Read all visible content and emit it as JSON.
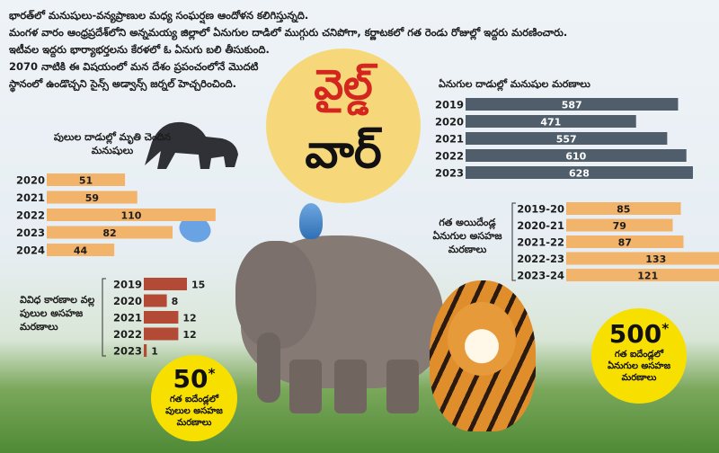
{
  "intro": {
    "line1": "భారత్‌లో మనుషులు-వన్యప్రాణుల మధ్య సంఘర్షణ ఆందోళన కలిగిస్తున్నది.",
    "line2": "మంగళ వారం ఆంధ్రప్రదేశ్‌లోని అన్నమయ్య జిల్లాలో ఏనుగుల దాడిలో ముగ్గురు చనిపోగా, కర్ణాటకలో గత రెండు రోజుల్లో ఇద్దరు మరణించారు.",
    "line3": "ఇటీవల ఇద్దరు భార్యాభర్తలను కేరళలో ఓ ఏనుగు బలి తీసుకుంది.",
    "line4": "2070 నాటికి ఈ విషయంలో మన దేశం ప్రపంచంలోనే మొదటి",
    "line5": "స్థానంలో ఉండొచ్చని సైన్స్‌ అడ్వాన్స్‌ జర్నల్‌ హెచ్చరించింది."
  },
  "title": {
    "line1": "వైల్డ్‌",
    "line2": "వార్‌"
  },
  "colors": {
    "orange": "#f2b36a",
    "slate": "#4f5e6a",
    "rust": "#b24a36",
    "badge": "#f7e000",
    "titleRed": "#d4251e",
    "titleCircle": "#f6d87a"
  },
  "badges": {
    "tiger": {
      "number": "50",
      "mark": "*",
      "caption": [
        "గత ఐదేండ్లలో",
        "పులుల అసహజ",
        "మరణాలు"
      ]
    },
    "elephant": {
      "number": "500",
      "mark": "*",
      "caption": [
        "గత ఐదేండ్లలో",
        "ఏనుగుల అసహజ",
        "మరణాలు"
      ]
    }
  },
  "chart_data": [
    {
      "id": "tiger_attack_deaths",
      "type": "bar",
      "orientation": "horizontal",
      "title": "పులుల దాడుల్లో మృతి చెందిన మనుషులు",
      "categories": [
        "2020",
        "2021",
        "2022",
        "2023",
        "2024"
      ],
      "values": [
        51,
        59,
        110,
        82,
        44
      ],
      "color": "#f2b36a"
    },
    {
      "id": "elephant_attack_deaths",
      "type": "bar",
      "orientation": "horizontal",
      "title": "ఏనుగుల దాడుల్లో మనుషుల మరణాలు",
      "categories": [
        "2019",
        "2020",
        "2021",
        "2022",
        "2023"
      ],
      "values": [
        587,
        471,
        557,
        610,
        628
      ],
      "color": "#4f5e6a"
    },
    {
      "id": "tiger_unnatural_deaths",
      "type": "bar",
      "orientation": "horizontal",
      "title": "వివిధ కారణాల వల్ల పులుల అసహజ మరణాలు",
      "categories": [
        "2019",
        "2020",
        "2021",
        "2022",
        "2023"
      ],
      "values": [
        15,
        8,
        12,
        12,
        1
      ],
      "color": "#b24a36"
    },
    {
      "id": "elephant_unnatural_deaths",
      "type": "bar",
      "orientation": "horizontal",
      "title": "గత అయిదేండ్ల ఏనుగుల అసహజ మరణాలు",
      "categories": [
        "2019-20",
        "2020-21",
        "2021-22",
        "2022-23",
        "2023-24"
      ],
      "values": [
        85,
        79,
        87,
        133,
        121
      ],
      "color": "#f2b36a"
    }
  ]
}
